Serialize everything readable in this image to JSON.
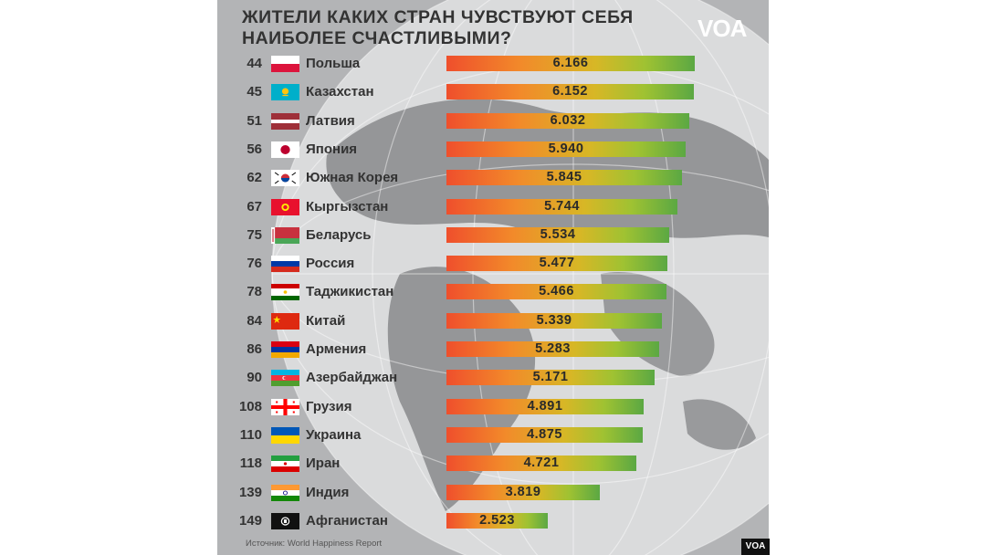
{
  "header": {
    "title_line1": "ЖИТЕЛИ КАКИХ СТРАН ЧУВСТВУЮТ СЕБЯ",
    "title_line2": "НАИБОЛЕЕ СЧАСТЛИВЫМИ?",
    "logo": "VOA"
  },
  "source": "Источник: World Happiness Report",
  "badge": "VOA",
  "colors": {
    "bar_start": "#ef4f2c",
    "bar_end": "#5ba843",
    "background": "#b3b4b6"
  },
  "chart_data": {
    "type": "bar",
    "orientation": "horizontal",
    "title": "ЖИТЕЛИ КАКИХ СТРАН ЧУВСТВУЮТ СЕБЯ НАИБОЛЕЕ СЧАСТЛИВЫМИ?",
    "grid": false,
    "categories": [
      "Польша",
      "Казахстан",
      "Латвия",
      "Япония",
      "Южная Корея",
      "Кыргызстан",
      "Беларусь",
      "Россия",
      "Таджикистан",
      "Китай",
      "Армения",
      "Азербайджан",
      "Грузия",
      "Украина",
      "Иран",
      "Индия",
      "Афганистан"
    ],
    "ranks": [
      "44",
      "45",
      "51",
      "56",
      "62",
      "67",
      "75",
      "76",
      "78",
      "84",
      "86",
      "90",
      "108",
      "110",
      "118",
      "139",
      "149"
    ],
    "values": [
      6.166,
      6.152,
      6.032,
      5.94,
      5.845,
      5.744,
      5.534,
      5.477,
      5.466,
      5.339,
      5.283,
      5.171,
      4.891,
      4.875,
      4.721,
      3.819,
      2.523
    ],
    "labels": [
      "6.166",
      "6.152",
      "6.032",
      "5.940",
      "5.845",
      "5.744",
      "5.534",
      "5.477",
      "5.466",
      "5.339",
      "5.283",
      "5.171",
      "4.891",
      "4.875",
      "4.721",
      "3.819",
      "2.523"
    ],
    "flags": [
      "poland-flag",
      "kazakhstan-flag",
      "latvia-flag",
      "japan-flag",
      "south-korea-flag",
      "kyrgyzstan-flag",
      "belarus-flag",
      "russia-flag",
      "tajikistan-flag",
      "china-flag",
      "armenia-flag",
      "azerbaijan-flag",
      "georgia-flag",
      "ukraine-flag",
      "iran-flag",
      "india-flag",
      "afghanistan-flag"
    ]
  }
}
